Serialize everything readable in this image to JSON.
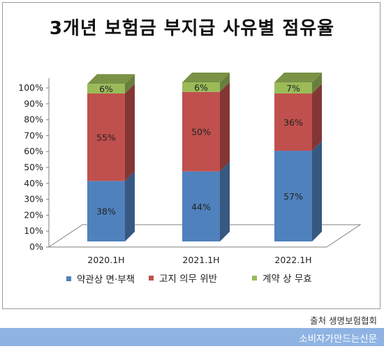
{
  "chart_data": {
    "type": "bar",
    "stacked": true,
    "three_d": true,
    "title": "3개년 보험금 부지급 사유별 점유율",
    "categories": [
      "2020.1H",
      "2021.1H",
      "2022.1H"
    ],
    "series": [
      {
        "name": "약관상 면·부책",
        "values": [
          38,
          44,
          57
        ],
        "labels": [
          "38%",
          "44%",
          "57%"
        ],
        "color": "#4f81bd"
      },
      {
        "name": "고지 의무 위반",
        "values": [
          55,
          50,
          36
        ],
        "labels": [
          "55%",
          "50%",
          "36%"
        ],
        "color": "#c0504d"
      },
      {
        "name": "계약 상 무효",
        "values": [
          6,
          6,
          7
        ],
        "labels": [
          "6%",
          "6%",
          "7%"
        ],
        "color": "#9bbb59"
      }
    ],
    "ylim": [
      0,
      100
    ],
    "yticks": [
      "0%",
      "10%",
      "20%",
      "30%",
      "40%",
      "50%",
      "60%",
      "70%",
      "80%",
      "90%",
      "100%"
    ],
    "legend_position": "bottom"
  },
  "source": "출처 생명보험협회",
  "footer_brand": "소비자가만드는신문",
  "colors": {
    "footer_bar": "#8fb4e3"
  }
}
